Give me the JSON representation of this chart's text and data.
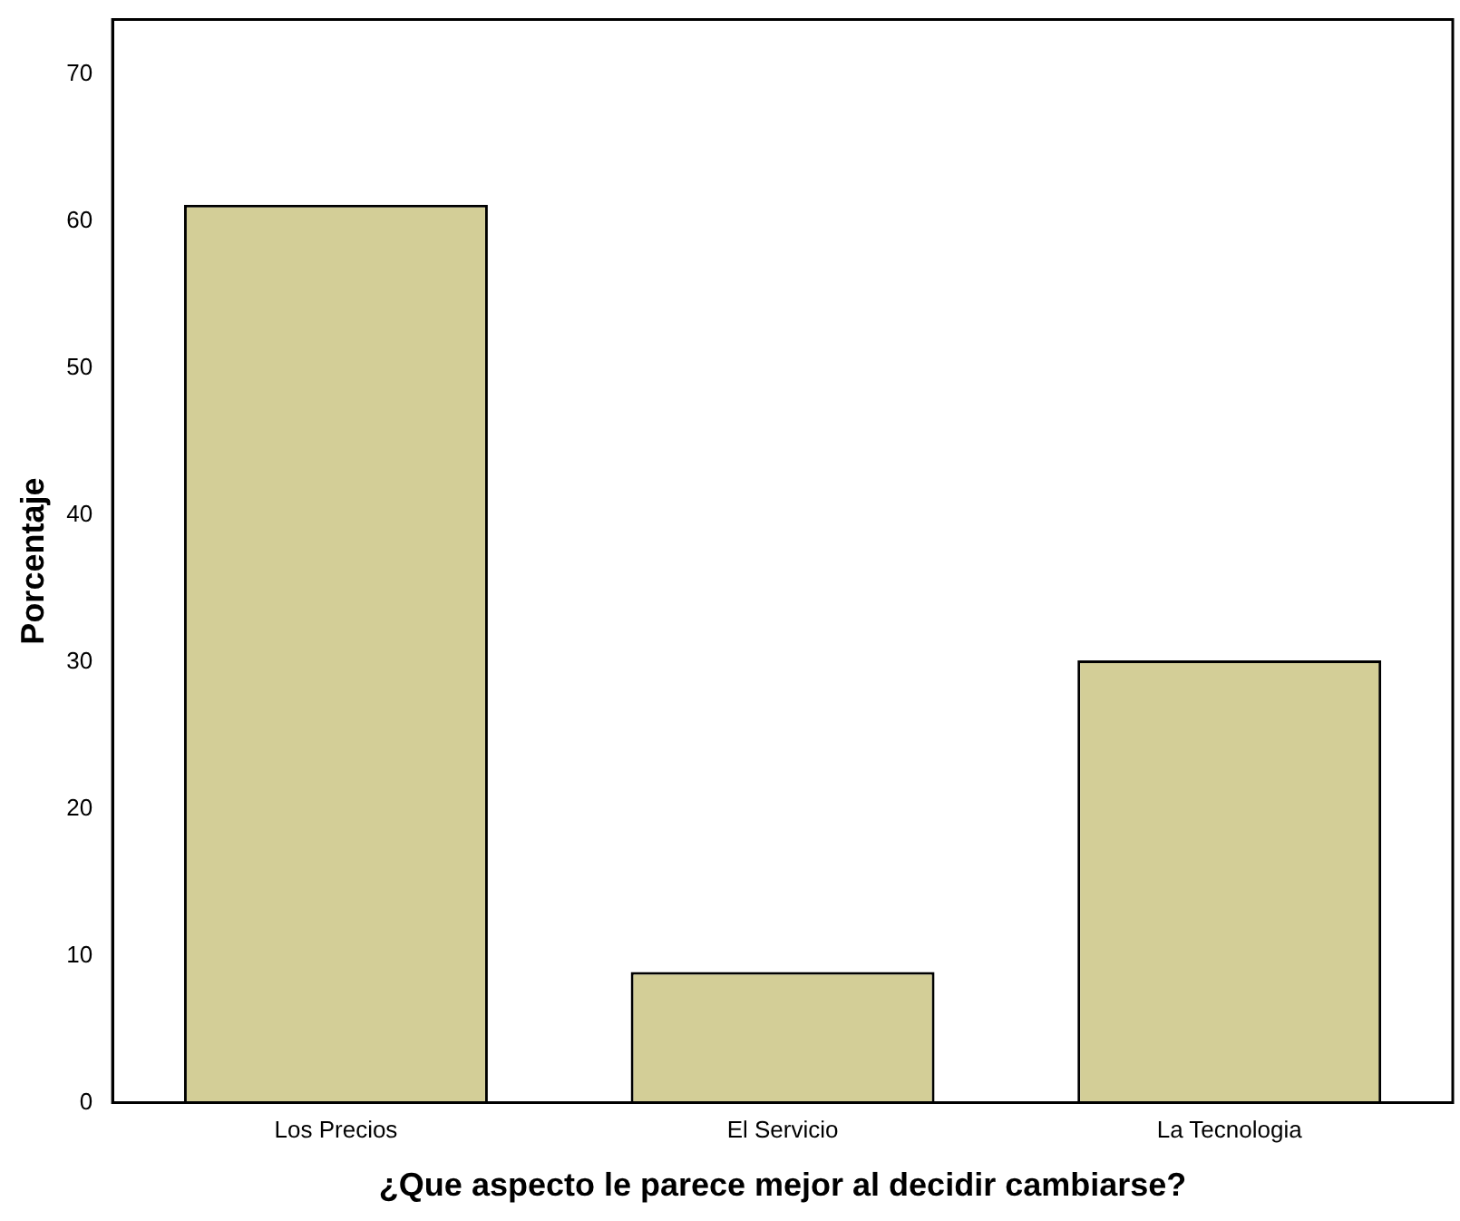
{
  "chart_data": {
    "type": "bar",
    "xlabel": "¿Que aspecto le parece mejor al decidir cambiarse?",
    "ylabel": "Porcentaje",
    "categories": [
      "Los Precios",
      "El Servicio",
      "La Tecnologia"
    ],
    "values": [
      61.1,
      8.9,
      30.1
    ],
    "color": "#d3ce97",
    "ylim": [
      0,
      73.7
    ],
    "yticks": [
      0,
      10,
      20,
      30,
      40,
      50,
      60,
      70
    ],
    "grid": false,
    "legend": false
  }
}
